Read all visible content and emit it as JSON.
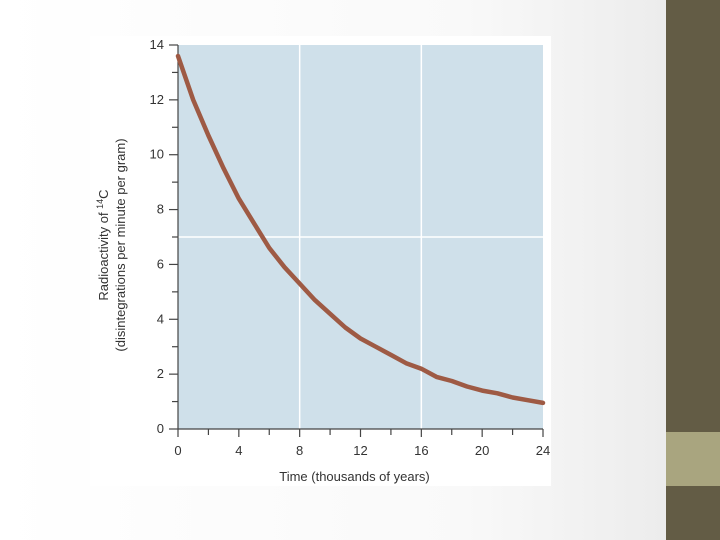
{
  "colors": {
    "plot_background": "#cfe0ea",
    "grid": "#ffffff",
    "curve": "#9e5a44",
    "axis": "#444444",
    "side_bar_dark": "#635c45",
    "side_bar_accent": "#a9a57f"
  },
  "chart_data": {
    "type": "line",
    "title": "",
    "xlabel": "Time (thousands of years)",
    "ylabel_line1": "Radioactivity of ",
    "ylabel_isotope_mass": "14",
    "ylabel_isotope_symbol": "C",
    "ylabel_line2": "(disintegrations per minute per gram)",
    "xlim": [
      0,
      24
    ],
    "ylim": [
      0,
      14
    ],
    "x_ticks": [
      0,
      4,
      8,
      12,
      16,
      20,
      24
    ],
    "y_ticks": [
      0,
      2,
      4,
      6,
      8,
      10,
      12,
      14
    ],
    "x_minor_step": 2,
    "y_minor_step": 1,
    "grid_x": [
      8,
      16
    ],
    "grid_y": [
      7
    ],
    "series": [
      {
        "values_x": [
          0,
          1,
          2,
          3,
          4,
          5,
          6,
          7,
          8,
          9,
          10,
          11,
          12,
          13,
          14,
          15,
          16,
          17,
          18,
          19,
          20,
          21,
          22,
          23,
          24
        ],
        "values_y": [
          13.6,
          12.0,
          10.7,
          9.5,
          8.4,
          7.5,
          6.6,
          5.9,
          5.3,
          4.7,
          4.2,
          3.7,
          3.3,
          3.0,
          2.7,
          2.4,
          2.2,
          1.9,
          1.75,
          1.55,
          1.4,
          1.3,
          1.15,
          1.05,
          0.95
        ]
      }
    ]
  }
}
